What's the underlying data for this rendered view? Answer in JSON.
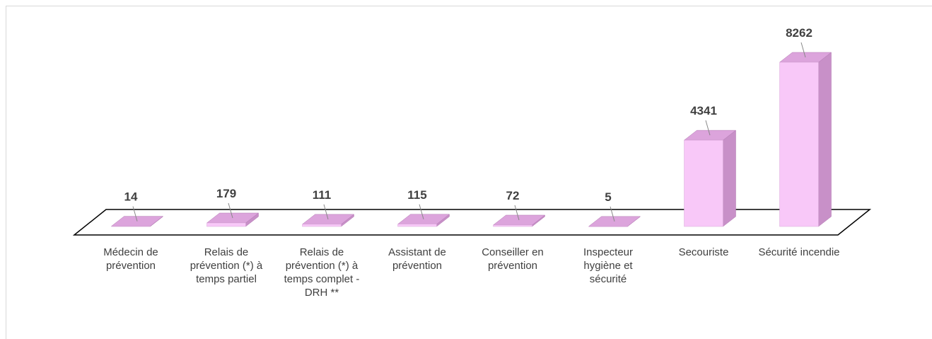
{
  "chart_data": {
    "type": "bar3d",
    "categories": [
      "Médecin de prévention",
      "Relais de prévention (*) à temps partiel",
      "Relais de prévention (*) à temps complet - DRH **",
      "Assistant de prévention",
      "Conseiller en prévention",
      "Inspecteur hygiène et sécurité",
      "Secouriste",
      "Sécurité incendie"
    ],
    "values": [
      14,
      179,
      111,
      115,
      72,
      5,
      4341,
      8262
    ],
    "color": "#f8c8f8"
  }
}
